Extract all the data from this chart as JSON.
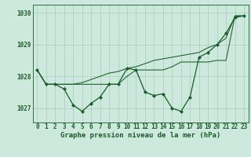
{
  "title": "Graphe pression niveau de la mer (hPa)",
  "background_color": "#cde8dd",
  "grid_color": "#a8ccbc",
  "line_color": "#1a5c28",
  "x_hours": [
    0,
    1,
    2,
    3,
    4,
    5,
    6,
    7,
    8,
    9,
    10,
    11,
    12,
    13,
    14,
    15,
    16,
    17,
    18,
    19,
    20,
    21,
    22,
    23
  ],
  "series_main": [
    1028.2,
    1027.75,
    1027.75,
    1027.6,
    1027.1,
    1026.9,
    1027.15,
    1027.35,
    1027.75,
    1027.75,
    1028.25,
    1028.2,
    1027.5,
    1027.4,
    1027.45,
    1027.0,
    1026.9,
    1027.35,
    1028.6,
    1028.75,
    1029.0,
    1029.35,
    1029.85,
    1029.9
  ],
  "series_upper": [
    1028.2,
    1027.75,
    1027.75,
    1027.75,
    1027.75,
    1027.8,
    1027.9,
    1028.0,
    1028.1,
    1028.15,
    1028.25,
    1028.3,
    1028.4,
    1028.5,
    1028.55,
    1028.6,
    1028.65,
    1028.7,
    1028.75,
    1028.9,
    1029.0,
    1029.2,
    1029.9,
    1029.9
  ],
  "series_lower": [
    1028.2,
    1027.75,
    1027.75,
    1027.75,
    1027.75,
    1027.75,
    1027.75,
    1027.75,
    1027.75,
    1027.75,
    1028.0,
    1028.2,
    1028.2,
    1028.2,
    1028.2,
    1028.3,
    1028.45,
    1028.45,
    1028.45,
    1028.45,
    1028.5,
    1028.5,
    1029.9,
    1029.9
  ],
  "ylim": [
    1026.55,
    1030.25
  ],
  "yticks": [
    1027,
    1028,
    1029,
    1030
  ],
  "tick_fontsize": 5.5,
  "title_fontsize": 6.5
}
